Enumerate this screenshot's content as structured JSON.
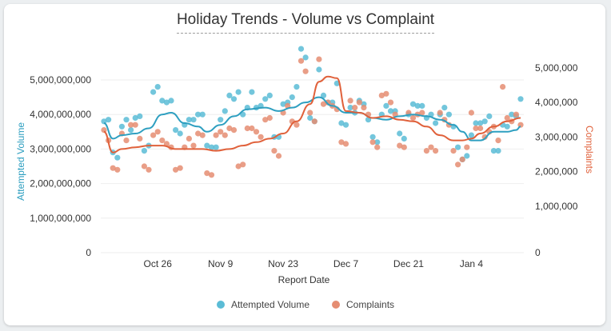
{
  "chart_data": {
    "type": "line+scatter",
    "title": "Holiday Trends - Volume vs Complaint",
    "xlabel": "Report Date",
    "ylabel_left": "Attempted Volume",
    "ylabel_right": "Complaints",
    "ylim_left": [
      0,
      5000000000
    ],
    "ylim_right": [
      0,
      5000000
    ],
    "x_start": "2023-10-14",
    "x_ticks": [
      "Oct 26",
      "Nov 9",
      "Nov 23",
      "Dec 7",
      "Dec 21",
      "Jan 4"
    ],
    "y_left_ticks": [
      "0",
      "1,000,000,000",
      "2,000,000,000",
      "3,000,000,000",
      "4,000,000,000",
      "5,000,000,000"
    ],
    "y_right_ticks": [
      "0",
      "1,000,000",
      "2,000,000",
      "3,000,000",
      "4,000,000",
      "5,000,000"
    ],
    "series": [
      {
        "name": "Attempted Volume",
        "color": "#5bbcd6",
        "line_color": "#2e9fc0",
        "axis": "left",
        "points": [
          [
            "Oct 14",
            3800000000
          ],
          [
            "Oct 15",
            3850000000
          ],
          [
            "Oct 16",
            2900000000
          ],
          [
            "Oct 17",
            2750000000
          ],
          [
            "Oct 18",
            3650000000
          ],
          [
            "Oct 19",
            3850000000
          ],
          [
            "Oct 20",
            3550000000
          ],
          [
            "Oct 21",
            3900000000
          ],
          [
            "Oct 22",
            3950000000
          ],
          [
            "Oct 23",
            2950000000
          ],
          [
            "Oct 24",
            3100000000
          ],
          [
            "Oct 25",
            4650000000
          ],
          [
            "Oct 26",
            4800000000
          ],
          [
            "Oct 27",
            4400000000
          ],
          [
            "Oct 28",
            4350000000
          ],
          [
            "Oct 29",
            4400000000
          ],
          [
            "Oct 30",
            3550000000
          ],
          [
            "Oct 31",
            3450000000
          ],
          [
            "Nov 1",
            3700000000
          ],
          [
            "Nov 2",
            3850000000
          ],
          [
            "Nov 3",
            3850000000
          ],
          [
            "Nov 4",
            4000000000
          ],
          [
            "Nov 5",
            4000000000
          ],
          [
            "Nov 6",
            3100000000
          ],
          [
            "Nov 7",
            3050000000
          ],
          [
            "Nov 8",
            3050000000
          ],
          [
            "Nov 9",
            3850000000
          ],
          [
            "Nov 10",
            4100000000
          ],
          [
            "Nov 11",
            4550000000
          ],
          [
            "Nov 12",
            4450000000
          ],
          [
            "Nov 13",
            4650000000
          ],
          [
            "Nov 14",
            4000000000
          ],
          [
            "Nov 15",
            4200000000
          ],
          [
            "Nov 16",
            4650000000
          ],
          [
            "Nov 17",
            4200000000
          ],
          [
            "Nov 18",
            4250000000
          ],
          [
            "Nov 19",
            4450000000
          ],
          [
            "Nov 20",
            4550000000
          ],
          [
            "Nov 21",
            3350000000
          ],
          [
            "Nov 22",
            3350000000
          ],
          [
            "Nov 23",
            4300000000
          ],
          [
            "Nov 24",
            4350000000
          ],
          [
            "Nov 25",
            4500000000
          ],
          [
            "Nov 26",
            4800000000
          ],
          [
            "Nov 27",
            5900000000
          ],
          [
            "Nov 28",
            5650000000
          ],
          [
            "Nov 29",
            3900000000
          ],
          [
            "Nov 30",
            3800000000
          ],
          [
            "Dec 1",
            5300000000
          ],
          [
            "Dec 2",
            4550000000
          ],
          [
            "Dec 3",
            4350000000
          ],
          [
            "Dec 4",
            4350000000
          ],
          [
            "Dec 5",
            4900000000
          ],
          [
            "Dec 6",
            3750000000
          ],
          [
            "Dec 7",
            3700000000
          ],
          [
            "Dec 8",
            4200000000
          ],
          [
            "Dec 9",
            4050000000
          ],
          [
            "Dec 10",
            4400000000
          ],
          [
            "Dec 11",
            4300000000
          ],
          [
            "Dec 12",
            3850000000
          ],
          [
            "Dec 13",
            3350000000
          ],
          [
            "Dec 14",
            3200000000
          ],
          [
            "Dec 15",
            4000000000
          ],
          [
            "Dec 16",
            4250000000
          ],
          [
            "Dec 17",
            4100000000
          ],
          [
            "Dec 18",
            4100000000
          ],
          [
            "Dec 19",
            3450000000
          ],
          [
            "Dec 20",
            3300000000
          ],
          [
            "Dec 21",
            4000000000
          ],
          [
            "Dec 22",
            4300000000
          ],
          [
            "Dec 23",
            4250000000
          ],
          [
            "Dec 24",
            4250000000
          ],
          [
            "Dec 25",
            3900000000
          ],
          [
            "Dec 26",
            4000000000
          ],
          [
            "Dec 27",
            3750000000
          ],
          [
            "Dec 28",
            4000000000
          ],
          [
            "Dec 29",
            4200000000
          ],
          [
            "Dec 30",
            4000000000
          ],
          [
            "Dec 31",
            3650000000
          ],
          [
            "Jan 1",
            3050000000
          ],
          [
            "Jan 2",
            2700000000
          ],
          [
            "Jan 3",
            2800000000
          ],
          [
            "Jan 4",
            3400000000
          ],
          [
            "Jan 5",
            3750000000
          ],
          [
            "Jan 6",
            3750000000
          ],
          [
            "Jan 7",
            3800000000
          ],
          [
            "Jan 8",
            3950000000
          ],
          [
            "Jan 9",
            2950000000
          ],
          [
            "Jan 10",
            2950000000
          ],
          [
            "Jan 11",
            3700000000
          ],
          [
            "Jan 12",
            3650000000
          ],
          [
            "Jan 13",
            4000000000
          ],
          [
            "Jan 14",
            3950000000
          ],
          [
            "Jan 15",
            4450000000
          ]
        ],
        "trend": [
          [
            "Oct 14",
            3750000000
          ],
          [
            "Oct 16",
            3300000000
          ],
          [
            "Oct 18",
            3400000000
          ],
          [
            "Oct 21",
            3450000000
          ],
          [
            "Oct 24",
            3600000000
          ],
          [
            "Oct 27",
            4000000000
          ],
          [
            "Oct 29",
            4050000000
          ],
          [
            "Nov 1",
            3750000000
          ],
          [
            "Nov 4",
            3650000000
          ],
          [
            "Nov 6",
            3500000000
          ],
          [
            "Nov 9",
            3700000000
          ],
          [
            "Nov 12",
            3950000000
          ],
          [
            "Nov 15",
            4150000000
          ],
          [
            "Nov 19",
            4200000000
          ],
          [
            "Nov 22",
            4100000000
          ],
          [
            "Nov 25",
            4200000000
          ],
          [
            "Nov 28",
            4350000000
          ],
          [
            "Dec 1",
            4500000000
          ],
          [
            "Dec 4",
            4250000000
          ],
          [
            "Dec 7",
            4050000000
          ],
          [
            "Dec 10",
            4050000000
          ],
          [
            "Dec 13",
            3900000000
          ],
          [
            "Dec 16",
            3850000000
          ],
          [
            "Dec 19",
            3950000000
          ],
          [
            "Dec 22",
            4000000000
          ],
          [
            "Dec 25",
            3950000000
          ],
          [
            "Dec 28",
            3850000000
          ],
          [
            "Dec 31",
            3700000000
          ],
          [
            "Jan 2",
            3500000000
          ],
          [
            "Jan 4",
            3250000000
          ],
          [
            "Jan 6",
            3250000000
          ],
          [
            "Jan 9",
            3500000000
          ],
          [
            "Jan 12",
            3500000000
          ],
          [
            "Jan 14",
            3550000000
          ],
          [
            "Jan 15",
            3650000000
          ]
        ]
      },
      {
        "name": "Complaints",
        "color": "#e58d72",
        "line_color": "#e0613b",
        "axis": "right",
        "points": [
          [
            "Oct 14",
            3550000
          ],
          [
            "Oct 15",
            3250000
          ],
          [
            "Oct 16",
            2450000
          ],
          [
            "Oct 17",
            2400000
          ],
          [
            "Oct 18",
            3450000
          ],
          [
            "Oct 19",
            3250000
          ],
          [
            "Oct 20",
            3700000
          ],
          [
            "Oct 21",
            3700000
          ],
          [
            "Oct 22",
            3300000
          ],
          [
            "Oct 23",
            2500000
          ],
          [
            "Oct 24",
            2400000
          ],
          [
            "Oct 25",
            3400000
          ],
          [
            "Oct 26",
            3500000
          ],
          [
            "Oct 27",
            3250000
          ],
          [
            "Oct 28",
            3150000
          ],
          [
            "Oct 29",
            3050000
          ],
          [
            "Oct 30",
            2400000
          ],
          [
            "Oct 31",
            2450000
          ],
          [
            "Nov 1",
            3050000
          ],
          [
            "Nov 2",
            3300000
          ],
          [
            "Nov 3",
            3100000
          ],
          [
            "Nov 4",
            3450000
          ],
          [
            "Nov 5",
            3400000
          ],
          [
            "Nov 6",
            2300000
          ],
          [
            "Nov 7",
            2250000
          ],
          [
            "Nov 8",
            3400000
          ],
          [
            "Nov 9",
            3500000
          ],
          [
            "Nov 10",
            3400000
          ],
          [
            "Nov 11",
            3600000
          ],
          [
            "Nov 12",
            3550000
          ],
          [
            "Nov 13",
            2500000
          ],
          [
            "Nov 14",
            2550000
          ],
          [
            "Nov 15",
            3600000
          ],
          [
            "Nov 16",
            3600000
          ],
          [
            "Nov 17",
            3500000
          ],
          [
            "Nov 18",
            3350000
          ],
          [
            "Nov 19",
            3850000
          ],
          [
            "Nov 20",
            3900000
          ],
          [
            "Nov 21",
            2950000
          ],
          [
            "Nov 22",
            2800000
          ],
          [
            "Nov 23",
            4050000
          ],
          [
            "Nov 24",
            4250000
          ],
          [
            "Nov 25",
            3800000
          ],
          [
            "Nov 26",
            3700000
          ],
          [
            "Nov 27",
            5550000
          ],
          [
            "Nov 28",
            5250000
          ],
          [
            "Nov 29",
            4050000
          ],
          [
            "Nov 30",
            3800000
          ],
          [
            "Dec 1",
            5600000
          ],
          [
            "Dec 2",
            4300000
          ],
          [
            "Dec 3",
            4350000
          ],
          [
            "Dec 4",
            4250000
          ],
          [
            "Dec 5",
            4150000
          ],
          [
            "Dec 6",
            3200000
          ],
          [
            "Dec 7",
            3150000
          ],
          [
            "Dec 8",
            4400000
          ],
          [
            "Dec 9",
            4200000
          ],
          [
            "Dec 10",
            4350000
          ],
          [
            "Dec 11",
            4200000
          ],
          [
            "Dec 12",
            4000000
          ],
          [
            "Dec 13",
            3200000
          ],
          [
            "Dec 14",
            3050000
          ],
          [
            "Dec 15",
            4550000
          ],
          [
            "Dec 16",
            4600000
          ],
          [
            "Dec 17",
            4350000
          ],
          [
            "Dec 18",
            4000000
          ],
          [
            "Dec 19",
            3100000
          ],
          [
            "Dec 20",
            3050000
          ],
          [
            "Dec 21",
            4050000
          ],
          [
            "Dec 22",
            3900000
          ],
          [
            "Dec 23",
            4000000
          ],
          [
            "Dec 24",
            4050000
          ],
          [
            "Dec 25",
            2950000
          ],
          [
            "Dec 26",
            3050000
          ],
          [
            "Dec 27",
            2950000
          ],
          [
            "Dec 28",
            4050000
          ],
          [
            "Dec 29",
            3850000
          ],
          [
            "Dec 30",
            3700000
          ],
          [
            "Dec 31",
            2950000
          ],
          [
            "Jan 1",
            2550000
          ],
          [
            "Jan 2",
            2700000
          ],
          [
            "Jan 3",
            3050000
          ],
          [
            "Jan 4",
            4050000
          ],
          [
            "Jan 5",
            3600000
          ],
          [
            "Jan 6",
            3600000
          ],
          [
            "Jan 7",
            3350000
          ],
          [
            "Jan 8",
            3500000
          ],
          [
            "Jan 9",
            3650000
          ],
          [
            "Jan 10",
            3250000
          ],
          [
            "Jan 11",
            4800000
          ],
          [
            "Jan 12",
            3900000
          ],
          [
            "Jan 13",
            3800000
          ],
          [
            "Jan 14",
            4000000
          ],
          [
            "Jan 15",
            3700000
          ]
        ],
        "trend": [
          [
            "Oct 14",
            3500000
          ],
          [
            "Oct 16",
            2900000
          ],
          [
            "Oct 18",
            3000000
          ],
          [
            "Oct 21",
            3050000
          ],
          [
            "Oct 24",
            3100000
          ],
          [
            "Oct 27",
            3100000
          ],
          [
            "Oct 30",
            3000000
          ],
          [
            "Nov 2",
            3000000
          ],
          [
            "Nov 5",
            3000000
          ],
          [
            "Nov 8",
            2950000
          ],
          [
            "Nov 11",
            3000000
          ],
          [
            "Nov 14",
            3100000
          ],
          [
            "Nov 17",
            3200000
          ],
          [
            "Nov 20",
            3300000
          ],
          [
            "Nov 23",
            3450000
          ],
          [
            "Nov 26",
            3800000
          ],
          [
            "Nov 29",
            4300000
          ],
          [
            "Dec 1",
            4950000
          ],
          [
            "Dec 3",
            5100000
          ],
          [
            "Dec 5",
            5050000
          ],
          [
            "Dec 7",
            4100000
          ],
          [
            "Dec 10",
            4050000
          ],
          [
            "Dec 13",
            3900000
          ],
          [
            "Dec 16",
            3950000
          ],
          [
            "Dec 19",
            3850000
          ],
          [
            "Dec 22",
            3800000
          ],
          [
            "Dec 25",
            3650000
          ],
          [
            "Dec 28",
            3400000
          ],
          [
            "Dec 31",
            3250000
          ],
          [
            "Jan 2",
            3250000
          ],
          [
            "Jan 4",
            3300000
          ],
          [
            "Jan 6",
            3450000
          ],
          [
            "Jan 9",
            3650000
          ],
          [
            "Jan 12",
            3800000
          ],
          [
            "Jan 15",
            3900000
          ]
        ]
      }
    ],
    "legend": {
      "placement": "bottom",
      "items": [
        "Attempted Volume",
        "Complaints"
      ]
    }
  }
}
